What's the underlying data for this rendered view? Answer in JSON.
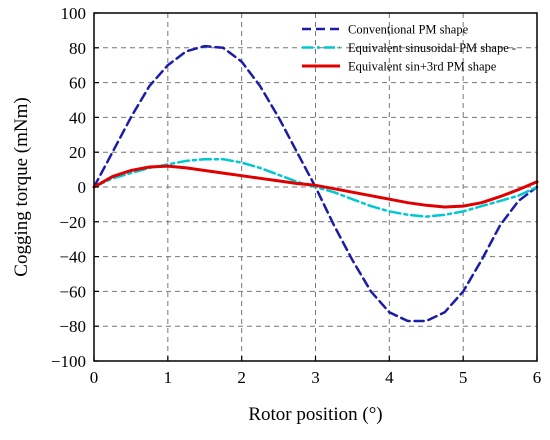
{
  "chart_data": {
    "type": "line",
    "xlabel": "Rotor position (°)",
    "ylabel": "Cogging torque (mNm)",
    "xlim": [
      0,
      6
    ],
    "ylim": [
      -100,
      100
    ],
    "xticks": [
      0,
      1,
      2,
      3,
      4,
      5,
      6
    ],
    "yticks": [
      100,
      80,
      60,
      40,
      20,
      0,
      -20,
      -40,
      -60,
      -80,
      -100
    ],
    "xtick_labels": [
      "0",
      "1",
      "2",
      "3",
      "4",
      "5",
      "6"
    ],
    "ytick_labels": [
      "100",
      "80",
      "60",
      "40",
      "20",
      "0",
      "−20",
      "−40",
      "−60",
      "−80",
      "−100"
    ],
    "grid": true,
    "legend_position": "top-right",
    "series": [
      {
        "name": "Conventional PM shape",
        "color": "#1c1ca8",
        "style": "dashed",
        "x": [
          0,
          0.25,
          0.5,
          0.75,
          1.0,
          1.25,
          1.5,
          1.75,
          2.0,
          2.25,
          2.5,
          2.75,
          3.0,
          3.25,
          3.5,
          3.75,
          4.0,
          4.25,
          4.5,
          4.75,
          5.0,
          5.25,
          5.5,
          5.75,
          6.0
        ],
        "y": [
          0,
          20,
          40,
          58,
          70,
          78,
          81,
          80,
          72,
          58,
          40,
          20,
          0,
          -22,
          -42,
          -60,
          -72,
          -77,
          -77,
          -72,
          -60,
          -42,
          -22,
          -8,
          0
        ]
      },
      {
        "name": "Equivalent sinusoidal PM shape -",
        "color": "#00c8d2",
        "style": "dashdot",
        "x": [
          0,
          0.25,
          0.5,
          0.75,
          1.0,
          1.25,
          1.5,
          1.75,
          2.0,
          2.25,
          2.5,
          2.75,
          3.0,
          3.25,
          3.5,
          3.75,
          4.0,
          4.25,
          4.5,
          4.75,
          5.0,
          5.25,
          5.5,
          5.75,
          6.0
        ],
        "y": [
          0,
          5,
          8,
          11,
          13,
          15,
          16,
          16,
          14,
          11,
          7,
          3,
          0,
          -3,
          -7,
          -11,
          -14,
          -16,
          -17,
          -16,
          -14,
          -11,
          -8,
          -5,
          0
        ]
      },
      {
        "name": "Equivalent sin+3rd PM shape",
        "color": "#e00000",
        "style": "solid",
        "x": [
          0,
          0.25,
          0.5,
          0.75,
          1.0,
          1.25,
          1.5,
          1.75,
          2.0,
          2.25,
          2.5,
          2.75,
          3.0,
          3.25,
          3.5,
          3.75,
          4.0,
          4.25,
          4.5,
          4.75,
          5.0,
          5.25,
          5.5,
          5.75,
          6.0
        ],
        "y": [
          0,
          6,
          9.5,
          11.5,
          12,
          11,
          9.5,
          8,
          6.5,
          5,
          3.5,
          2,
          1,
          -1,
          -3,
          -5,
          -7,
          -9,
          -10.5,
          -11.5,
          -11,
          -9,
          -5.5,
          -1.5,
          3
        ]
      }
    ]
  }
}
